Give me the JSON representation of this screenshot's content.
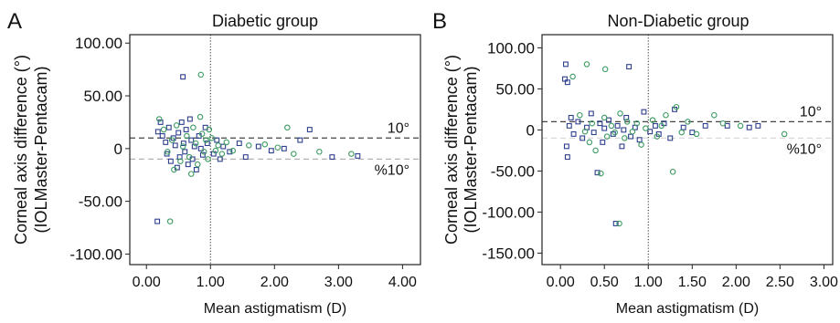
{
  "chart_data": [
    {
      "type": "scatter",
      "panel_letter": "A",
      "title": "Diabetic group",
      "xlabel": "Mean astigmatism (D)",
      "ylabel": [
        "Corneal axis difference (°)",
        "(IOLMaster-Pentacam)"
      ],
      "xlim": [
        -0.26,
        4.28
      ],
      "ylim": [
        -110,
        108
      ],
      "grid": false,
      "legend": "none",
      "x_ticks": [
        {
          "value": 0,
          "label": "0.00"
        },
        {
          "value": 1,
          "label": "1.00"
        },
        {
          "value": 2,
          "label": "2.00"
        },
        {
          "value": 3,
          "label": "3.00"
        },
        {
          "value": 4,
          "label": "4.00"
        }
      ],
      "y_ticks": [
        {
          "value": 100,
          "label": "100.00"
        },
        {
          "value": 50,
          "label": "50.00"
        },
        {
          "value": 0,
          "label": "0"
        },
        {
          "value": -50,
          "label": "-50.00"
        },
        {
          "value": -100,
          "label": "-100.00"
        }
      ],
      "reference_lines": [
        {
          "axis": "y",
          "value": 10,
          "label": "10°",
          "style": "dashed",
          "color": "#444444"
        },
        {
          "axis": "y",
          "value": -10,
          "label": "%10°",
          "style": "dashed",
          "color": "#b3b3b3"
        },
        {
          "axis": "x",
          "value": 1,
          "style": "dotted",
          "color": "#222222"
        }
      ],
      "series": [
        {
          "marker": "square",
          "color": "#2d3f8e",
          "points": [
            [
              0.17,
              -69
            ],
            [
              0.57,
              68
            ],
            [
              0.18,
              16
            ],
            [
              0.22,
              25
            ],
            [
              0.25,
              12
            ],
            [
              0.3,
              6
            ],
            [
              0.32,
              -5
            ],
            [
              0.35,
              20
            ],
            [
              0.38,
              -12
            ],
            [
              0.42,
              10
            ],
            [
              0.45,
              3
            ],
            [
              0.48,
              -18
            ],
            [
              0.5,
              15
            ],
            [
              0.52,
              -8
            ],
            [
              0.55,
              25
            ],
            [
              0.58,
              5
            ],
            [
              0.6,
              -3
            ],
            [
              0.62,
              18
            ],
            [
              0.65,
              -15
            ],
            [
              0.68,
              28
            ],
            [
              0.7,
              8
            ],
            [
              0.72,
              -10
            ],
            [
              0.75,
              2
            ],
            [
              0.78,
              -20
            ],
            [
              0.82,
              12
            ],
            [
              0.85,
              0
            ],
            [
              0.88,
              -6
            ],
            [
              0.92,
              20
            ],
            [
              0.95,
              5
            ],
            [
              1.05,
              -5
            ],
            [
              1.1,
              8
            ],
            [
              1.15,
              -10
            ],
            [
              1.2,
              2
            ],
            [
              1.3,
              -3
            ],
            [
              1.45,
              5
            ],
            [
              1.55,
              -8
            ],
            [
              1.75,
              2
            ],
            [
              1.95,
              -2
            ],
            [
              2.15,
              0
            ],
            [
              2.4,
              8
            ],
            [
              2.55,
              18
            ],
            [
              2.9,
              -8
            ],
            [
              3.3,
              -7
            ]
          ]
        },
        {
          "marker": "circle",
          "color": "#3d9b63",
          "points": [
            [
              0.37,
              -69
            ],
            [
              0.85,
              70
            ],
            [
              0.2,
              28
            ],
            [
              0.27,
              18
            ],
            [
              0.33,
              -3
            ],
            [
              0.4,
              8
            ],
            [
              0.43,
              -20
            ],
            [
              0.47,
              22
            ],
            [
              0.53,
              -12
            ],
            [
              0.57,
              2
            ],
            [
              0.63,
              12
            ],
            [
              0.67,
              -8
            ],
            [
              0.7,
              -24
            ],
            [
              0.73,
              20
            ],
            [
              0.77,
              5
            ],
            [
              0.8,
              -15
            ],
            [
              0.84,
              30
            ],
            [
              0.87,
              14
            ],
            [
              0.9,
              -3
            ],
            [
              0.93,
              8
            ],
            [
              0.96,
              -10
            ],
            [
              0.98,
              18
            ],
            [
              1.02,
              10
            ],
            [
              1.08,
              -2
            ],
            [
              1.12,
              3
            ],
            [
              1.18,
              -5
            ],
            [
              1.25,
              6
            ],
            [
              1.35,
              -2
            ],
            [
              1.6,
              3
            ],
            [
              1.85,
              4
            ],
            [
              2.05,
              1
            ],
            [
              2.2,
              20
            ],
            [
              2.3,
              -5
            ],
            [
              2.7,
              -3
            ],
            [
              3.2,
              -5
            ]
          ]
        }
      ]
    },
    {
      "type": "scatter",
      "panel_letter": "B",
      "title": "Non-Diabetic group",
      "xlabel": "Mean astigmatism (D)",
      "ylabel": [
        "Corneal axis difference (°)",
        "(IOLMaster-Pentacam)"
      ],
      "xlim": [
        -0.21,
        3.1
      ],
      "ylim": [
        -164,
        116
      ],
      "grid": false,
      "legend": "none",
      "x_ticks": [
        {
          "value": 0,
          "label": "0.00"
        },
        {
          "value": 0.5,
          "label": "0.50"
        },
        {
          "value": 1,
          "label": "1.00"
        },
        {
          "value": 1.5,
          "label": "1.50"
        },
        {
          "value": 2,
          "label": "2.00"
        },
        {
          "value": 2.5,
          "label": "2.50"
        },
        {
          "value": 3,
          "label": "3.00"
        }
      ],
      "y_ticks": [
        {
          "value": 100,
          "label": "100.00"
        },
        {
          "value": 50,
          "label": "50.00"
        },
        {
          "value": 0,
          "label": "0"
        },
        {
          "value": -50,
          "label": "-50.00"
        },
        {
          "value": -100,
          "label": "-100.00"
        },
        {
          "value": -150,
          "label": "-150.00"
        }
      ],
      "reference_lines": [
        {
          "axis": "y",
          "value": 10,
          "label": "10°",
          "style": "dashed",
          "color": "#444444"
        },
        {
          "axis": "y",
          "value": -10,
          "label": "%10°",
          "style": "dashed",
          "color": "#d9d9d9"
        },
        {
          "axis": "x",
          "value": 1,
          "style": "dotted",
          "color": "#222222"
        }
      ],
      "series": [
        {
          "marker": "square",
          "color": "#2d3f8e",
          "points": [
            [
              0.06,
              80
            ],
            [
              0.05,
              62
            ],
            [
              0.08,
              58
            ],
            [
              0.12,
              15
            ],
            [
              0.1,
              5
            ],
            [
              0.07,
              -20
            ],
            [
              0.08,
              -33
            ],
            [
              0.15,
              -5
            ],
            [
              0.2,
              10
            ],
            [
              0.25,
              -10
            ],
            [
              0.3,
              3
            ],
            [
              0.35,
              20
            ],
            [
              0.38,
              -3
            ],
            [
              0.42,
              -52
            ],
            [
              0.45,
              8
            ],
            [
              0.48,
              -15
            ],
            [
              0.5,
              2
            ],
            [
              0.55,
              12
            ],
            [
              0.6,
              -5
            ],
            [
              0.63,
              -114
            ],
            [
              0.65,
              5
            ],
            [
              0.7,
              -20
            ],
            [
              0.72,
              0
            ],
            [
              0.75,
              15
            ],
            [
              0.78,
              77
            ],
            [
              0.8,
              -8
            ],
            [
              0.85,
              3
            ],
            [
              0.9,
              -12
            ],
            [
              0.95,
              22
            ],
            [
              1.02,
              -2
            ],
            [
              1.08,
              5
            ],
            [
              1.12,
              -5
            ],
            [
              1.18,
              8
            ],
            [
              1.25,
              -10
            ],
            [
              1.3,
              25
            ],
            [
              1.4,
              3
            ],
            [
              1.5,
              -3
            ],
            [
              1.65,
              5
            ],
            [
              1.9,
              5
            ],
            [
              2.15,
              3
            ],
            [
              2.25,
              5
            ]
          ]
        },
        {
          "marker": "circle",
          "color": "#3d9b63",
          "points": [
            [
              0.3,
              80
            ],
            [
              0.51,
              74
            ],
            [
              0.14,
              65
            ],
            [
              0.22,
              18
            ],
            [
              0.28,
              -2
            ],
            [
              0.33,
              -15
            ],
            [
              0.36,
              8
            ],
            [
              0.4,
              -25
            ],
            [
              0.46,
              -53
            ],
            [
              0.5,
              15
            ],
            [
              0.53,
              -8
            ],
            [
              0.58,
              5
            ],
            [
              0.62,
              -3
            ],
            [
              0.67,
              -114
            ],
            [
              0.68,
              20
            ],
            [
              0.73,
              -10
            ],
            [
              0.76,
              10
            ],
            [
              0.82,
              -2
            ],
            [
              0.87,
              8
            ],
            [
              0.92,
              -18
            ],
            [
              0.97,
              2
            ],
            [
              1.05,
              12
            ],
            [
              1.1,
              -8
            ],
            [
              1.15,
              5
            ],
            [
              1.2,
              18
            ],
            [
              1.28,
              -51
            ],
            [
              1.32,
              28
            ],
            [
              1.38,
              -3
            ],
            [
              1.45,
              10
            ],
            [
              1.55,
              -5
            ],
            [
              1.75,
              18
            ],
            [
              1.85,
              8
            ],
            [
              2.05,
              5
            ],
            [
              2.55,
              -5
            ]
          ]
        }
      ]
    }
  ]
}
